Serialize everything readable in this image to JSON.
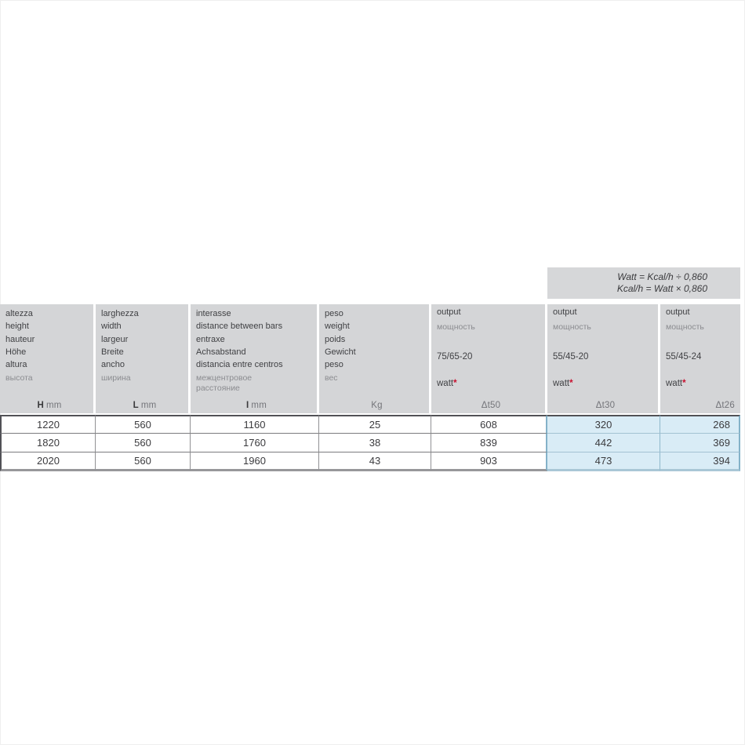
{
  "note": {
    "line1": "Watt = Kcal/h ÷ 0,860",
    "line2": "Kcal/h = Watt × 0,860"
  },
  "table": {
    "dimension_columns": [
      {
        "labels": [
          "altezza",
          "height",
          "hauteur",
          "Höhe",
          "altura"
        ],
        "label_ru": "высота",
        "unit_symbol": "H",
        "unit_suffix": "mm"
      },
      {
        "labels": [
          "larghezza",
          "width",
          "largeur",
          "Breite",
          "ancho"
        ],
        "label_ru": "ширина",
        "unit_symbol": "L",
        "unit_suffix": "mm"
      },
      {
        "labels": [
          "interasse",
          "distance between bars",
          "entraxe",
          "Achsabstand",
          "distancia entre centros"
        ],
        "label_ru": "межцентровое расстояние",
        "unit_symbol": "I",
        "unit_suffix": "mm"
      },
      {
        "labels": [
          "peso",
          "weight",
          "poids",
          "Gewicht",
          "peso"
        ],
        "label_ru": "вес",
        "unit_symbol": "",
        "unit_suffix": "Kg"
      }
    ],
    "output_columns": [
      {
        "label": "output",
        "label_ru": "мощность",
        "regime": "75/65-20",
        "watt_label": "watt",
        "asterisk": "*",
        "unit": "Δt50",
        "highlighted": false
      },
      {
        "label": "output",
        "label_ru": "мощность",
        "regime": "55/45-20",
        "watt_label": "watt",
        "asterisk": "*",
        "unit": "Δt30",
        "highlighted": true
      },
      {
        "label": "output",
        "label_ru": "мощность",
        "regime": "55/45-24",
        "watt_label": "watt",
        "asterisk": "*",
        "unit": "Δt26",
        "highlighted": true
      }
    ],
    "rows": [
      [
        "1220",
        "560",
        "1160",
        "25",
        "608",
        "320",
        "268"
      ],
      [
        "1820",
        "560",
        "1760",
        "38",
        "839",
        "442",
        "369"
      ],
      [
        "2020",
        "560",
        "1960",
        "43",
        "903",
        "473",
        "394"
      ]
    ]
  },
  "colors": {
    "header_bg": "#d4d5d7",
    "note_bg": "#d6d7d9",
    "highlight_bg": "#d9ecf6",
    "highlight_border": "#84b2c9",
    "dark_border": "#515156",
    "text_dark": "#3b3b3e",
    "text_light": "#8b8c90",
    "asterisk_red": "#c8102e"
  }
}
